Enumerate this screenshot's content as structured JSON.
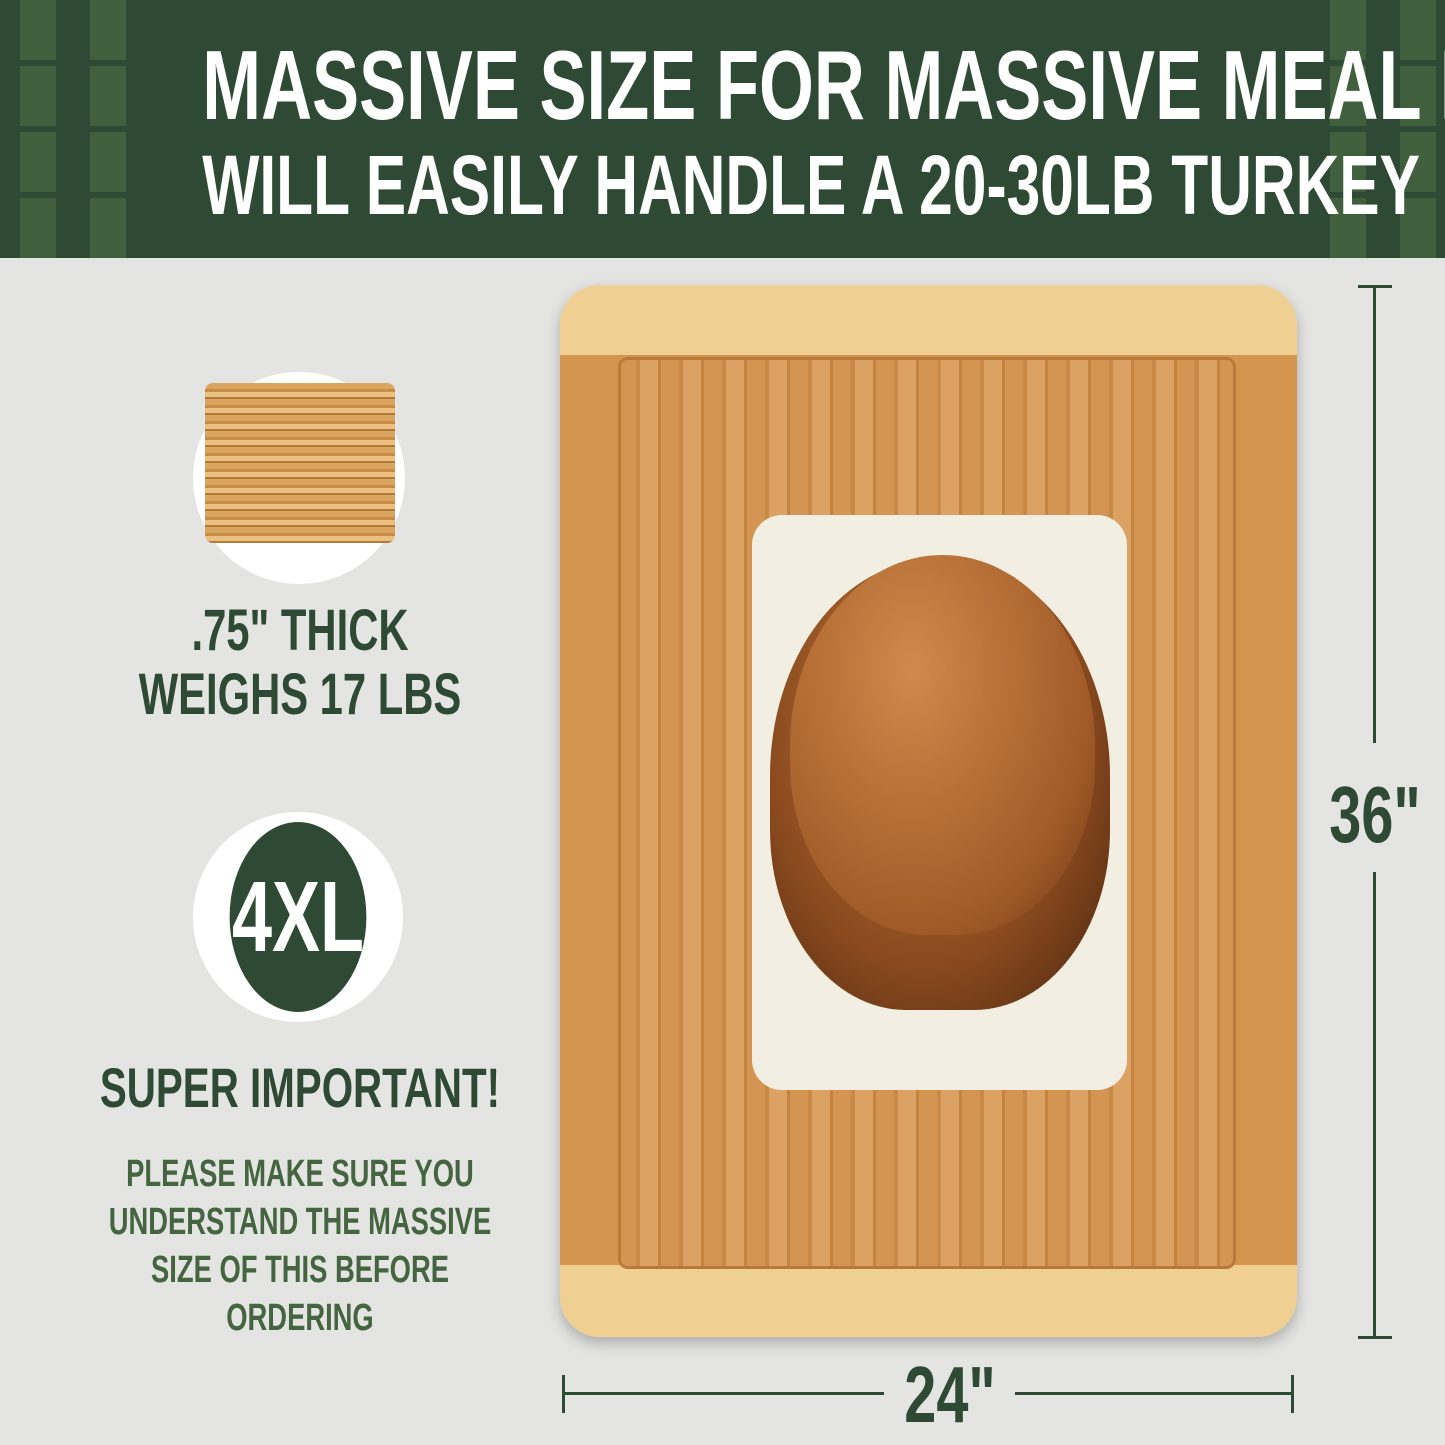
{
  "header": {
    "title": "MASSIVE SIZE FOR MASSIVE MEAL PREP",
    "subtitle": "WILL EASILY HANDLE A 20-30LB TURKEY"
  },
  "left": {
    "thickness": ".75\" THICK",
    "weight": "WEIGHS 17 LBS",
    "badge": "4XL",
    "warning_title": "SUPER IMPORTANT!",
    "warning_lines": [
      "PLEASE MAKE SURE YOU",
      "UNDERSTAND THE MASSIVE",
      "SIZE OF THIS BEFORE",
      "ORDERING"
    ]
  },
  "dimensions": {
    "height": "36\"",
    "width": "24\""
  },
  "colors": {
    "brand_green": "#2f4a34",
    "background": "#e4e4e3"
  }
}
